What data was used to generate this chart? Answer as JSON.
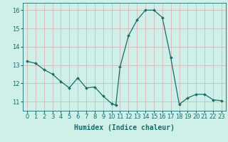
{
  "x": [
    0,
    1,
    2,
    3,
    4,
    5,
    6,
    7,
    8,
    9,
    10,
    10.5,
    11,
    12,
    13,
    14,
    15,
    16,
    17,
    18,
    19,
    20,
    21,
    22,
    23
  ],
  "y": [
    13.2,
    13.1,
    12.75,
    12.5,
    12.1,
    11.75,
    12.3,
    11.75,
    11.8,
    11.3,
    10.9,
    10.8,
    12.9,
    14.6,
    15.45,
    16.0,
    16.0,
    15.6,
    13.4,
    10.85,
    11.2,
    11.4,
    11.4,
    11.1,
    11.05
  ],
  "line_color": "#1a6b6b",
  "marker": "D",
  "marker_size": 2.0,
  "bg_color": "#cef0e8",
  "grid_color": "#d4b8b8",
  "xlabel": "Humidex (Indice chaleur)",
  "xlabel_fontsize": 7,
  "xlabel_color": "#1a6b6b",
  "tick_color": "#1a6b6b",
  "tick_fontsize": 6,
  "ylim": [
    10.5,
    16.4
  ],
  "xlim": [
    -0.5,
    23.5
  ],
  "yticks": [
    11,
    12,
    13,
    14,
    15,
    16
  ],
  "xticks": [
    0,
    1,
    2,
    3,
    4,
    5,
    6,
    7,
    8,
    9,
    10,
    11,
    12,
    13,
    14,
    15,
    16,
    17,
    18,
    19,
    20,
    21,
    22,
    23
  ]
}
